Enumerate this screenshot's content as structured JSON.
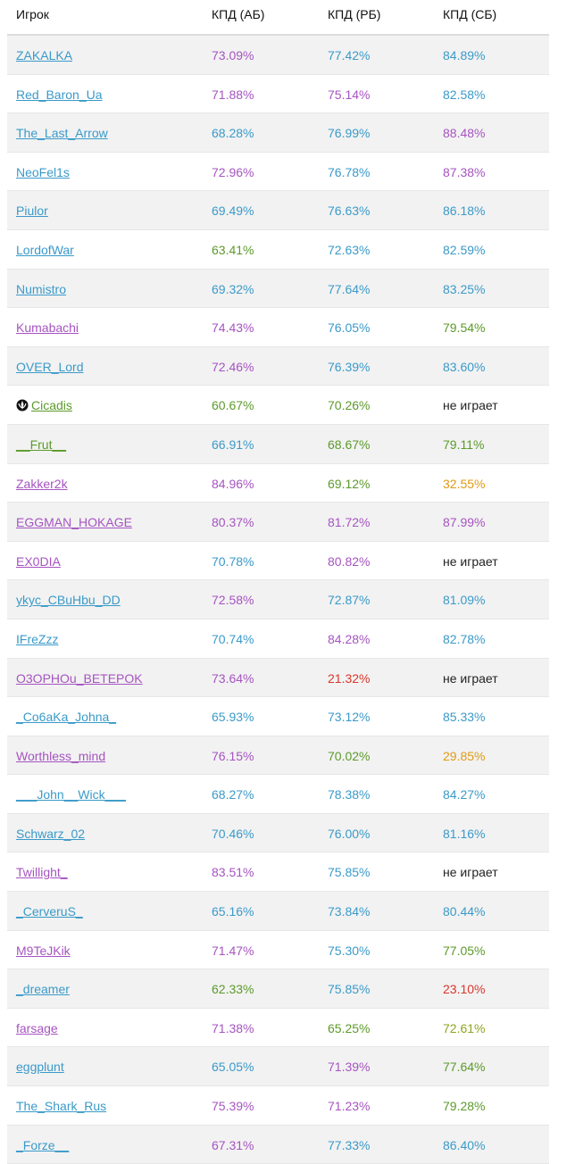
{
  "colors": {
    "blue": "#3a9ac9",
    "purple": "#a654c1",
    "green": "#5c9a2a",
    "lime": "#8fa51e",
    "orange": "#e09a14",
    "red": "#d9362a",
    "dark": "#222222"
  },
  "header": [
    "Игрок",
    "КПД (АБ)",
    "КПД (РБ)",
    "КПД (СБ)"
  ],
  "rows": [
    {
      "name": "ZAKALKA",
      "name_color": "blue",
      "ab": "73.09%",
      "ab_color": "purple",
      "rb": "77.42%",
      "rb_color": "blue",
      "sb": "84.89%",
      "sb_color": "blue"
    },
    {
      "name": "Red_Baron_Ua",
      "name_color": "blue",
      "ab": "71.88%",
      "ab_color": "purple",
      "rb": "75.14%",
      "rb_color": "purple",
      "sb": "82.58%",
      "sb_color": "blue"
    },
    {
      "name": "The_Last_Arrow",
      "name_color": "blue",
      "ab": "68.28%",
      "ab_color": "blue",
      "rb": "76.99%",
      "rb_color": "blue",
      "sb": "88.48%",
      "sb_color": "purple"
    },
    {
      "name": "NeoFel1s",
      "name_color": "blue",
      "ab": "72.96%",
      "ab_color": "purple",
      "rb": "76.78%",
      "rb_color": "blue",
      "sb": "87.38%",
      "sb_color": "purple"
    },
    {
      "name": "Piulor",
      "name_color": "blue",
      "ab": "69.49%",
      "ab_color": "blue",
      "rb": "76.63%",
      "rb_color": "blue",
      "sb": "86.18%",
      "sb_color": "blue"
    },
    {
      "name": "LordofWar",
      "name_color": "blue",
      "ab": "63.41%",
      "ab_color": "green",
      "rb": "72.63%",
      "rb_color": "blue",
      "sb": "82.59%",
      "sb_color": "blue"
    },
    {
      "name": "Numistro",
      "name_color": "blue",
      "ab": "69.32%",
      "ab_color": "blue",
      "rb": "77.64%",
      "rb_color": "blue",
      "sb": "83.25%",
      "sb_color": "blue"
    },
    {
      "name": "Kumabachi",
      "name_color": "purple",
      "ab": "74.43%",
      "ab_color": "purple",
      "rb": "76.05%",
      "rb_color": "blue",
      "sb": "79.54%",
      "sb_color": "green"
    },
    {
      "name": "OVER_Lord",
      "name_color": "blue",
      "ab": "72.46%",
      "ab_color": "purple",
      "rb": "76.39%",
      "rb_color": "blue",
      "sb": "83.60%",
      "sb_color": "blue"
    },
    {
      "name": "Cicadis",
      "name_color": "green",
      "icon": "clan-emblem-icon",
      "ab": "60.67%",
      "ab_color": "green",
      "rb": "70.26%",
      "rb_color": "green",
      "sb": "не играет",
      "sb_color": "dark"
    },
    {
      "name": "__Frut__",
      "name_color": "green",
      "ab": "66.91%",
      "ab_color": "blue",
      "rb": "68.67%",
      "rb_color": "green",
      "sb": "79.11%",
      "sb_color": "green"
    },
    {
      "name": "Zakker2k",
      "name_color": "purple",
      "ab": "84.96%",
      "ab_color": "purple",
      "rb": "69.12%",
      "rb_color": "green",
      "sb": "32.55%",
      "sb_color": "orange"
    },
    {
      "name": "EGGMAN_HOKAGE",
      "name_color": "purple",
      "ab": "80.37%",
      "ab_color": "purple",
      "rb": "81.72%",
      "rb_color": "purple",
      "sb": "87.99%",
      "sb_color": "purple"
    },
    {
      "name": "EX0DIA",
      "name_color": "purple",
      "ab": "70.78%",
      "ab_color": "blue",
      "rb": "80.82%",
      "rb_color": "purple",
      "sb": "не играет",
      "sb_color": "dark"
    },
    {
      "name": "ykyc_CBuHbu_DD",
      "name_color": "blue",
      "ab": "72.58%",
      "ab_color": "purple",
      "rb": "72.87%",
      "rb_color": "blue",
      "sb": "81.09%",
      "sb_color": "blue"
    },
    {
      "name": "IFreZzz",
      "name_color": "blue",
      "ab": "70.74%",
      "ab_color": "blue",
      "rb": "84.28%",
      "rb_color": "purple",
      "sb": "82.78%",
      "sb_color": "blue"
    },
    {
      "name": "O3OPHOu_BETEPOK",
      "name_color": "purple",
      "ab": "73.64%",
      "ab_color": "purple",
      "rb": "21.32%",
      "rb_color": "red",
      "sb": "не играет",
      "sb_color": "dark"
    },
    {
      "name": "_Co6aKa_Johna_",
      "name_color": "blue",
      "ab": "65.93%",
      "ab_color": "blue",
      "rb": "73.12%",
      "rb_color": "blue",
      "sb": "85.33%",
      "sb_color": "blue"
    },
    {
      "name": "Worthless_mind",
      "name_color": "purple",
      "ab": "76.15%",
      "ab_color": "purple",
      "rb": "70.02%",
      "rb_color": "green",
      "sb": "29.85%",
      "sb_color": "orange"
    },
    {
      "name": "___John__Wick___",
      "name_color": "blue",
      "ab": "68.27%",
      "ab_color": "blue",
      "rb": "78.38%",
      "rb_color": "blue",
      "sb": "84.27%",
      "sb_color": "blue"
    },
    {
      "name": "Schwarz_02",
      "name_color": "blue",
      "ab": "70.46%",
      "ab_color": "blue",
      "rb": "76.00%",
      "rb_color": "blue",
      "sb": "81.16%",
      "sb_color": "blue"
    },
    {
      "name": "Twillight_",
      "name_color": "purple",
      "ab": "83.51%",
      "ab_color": "purple",
      "rb": "75.85%",
      "rb_color": "blue",
      "sb": "не играет",
      "sb_color": "dark"
    },
    {
      "name": "_CerveruS_",
      "name_color": "blue",
      "ab": "65.16%",
      "ab_color": "blue",
      "rb": "73.84%",
      "rb_color": "blue",
      "sb": "80.44%",
      "sb_color": "blue"
    },
    {
      "name": "M9TeJKik",
      "name_color": "purple",
      "ab": "71.47%",
      "ab_color": "purple",
      "rb": "75.30%",
      "rb_color": "blue",
      "sb": "77.05%",
      "sb_color": "green"
    },
    {
      "name": "_dreamer",
      "name_color": "blue",
      "ab": "62.33%",
      "ab_color": "green",
      "rb": "75.85%",
      "rb_color": "blue",
      "sb": "23.10%",
      "sb_color": "red"
    },
    {
      "name": "farsage",
      "name_color": "purple",
      "ab": "71.38%",
      "ab_color": "purple",
      "rb": "65.25%",
      "rb_color": "green",
      "sb": "72.61%",
      "sb_color": "lime"
    },
    {
      "name": "eggplunt",
      "name_color": "blue",
      "ab": "65.05%",
      "ab_color": "blue",
      "rb": "71.39%",
      "rb_color": "purple",
      "sb": "77.64%",
      "sb_color": "green"
    },
    {
      "name": "The_Shark_Rus",
      "name_color": "blue",
      "ab": "75.39%",
      "ab_color": "purple",
      "rb": "71.23%",
      "rb_color": "purple",
      "sb": "79.28%",
      "sb_color": "green"
    },
    {
      "name": "_Forze__",
      "name_color": "blue",
      "ab": "67.31%",
      "ab_color": "purple",
      "rb": "77.33%",
      "rb_color": "blue",
      "sb": "86.40%",
      "sb_color": "blue"
    }
  ]
}
